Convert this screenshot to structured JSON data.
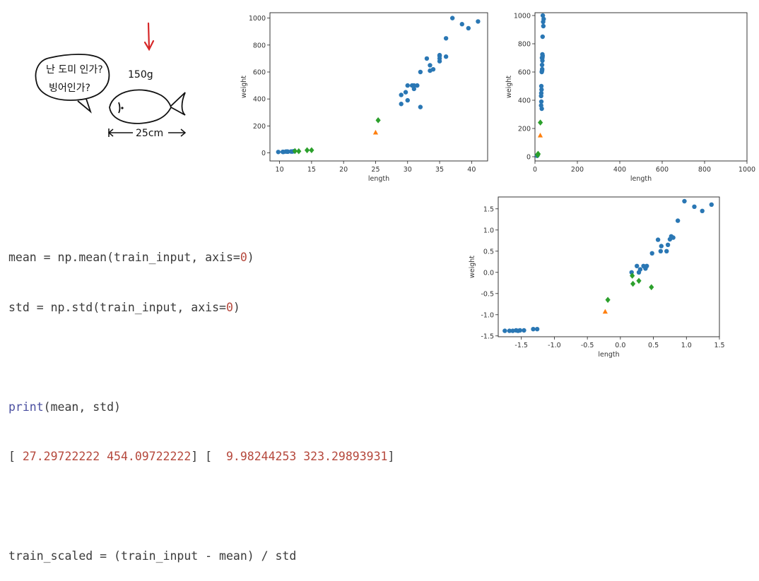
{
  "sketch": {
    "bubble_line1": "난 도미 인가?",
    "bubble_line2": "빙어인가?",
    "weight_label": "150g",
    "length_label": "25cm"
  },
  "code": {
    "line1_a": "mean = np.mean(train_input, axis=",
    "line1_b": "0",
    "line1_c": ")",
    "line2_a": "std = np.std(train_input, axis=",
    "line2_b": "0",
    "line2_c": ")",
    "line3_kw": "print",
    "line3_rest": "(mean, std)",
    "line4_open": "[ ",
    "line4_mean": "27.29722222 454.09722222",
    "line4_mid": "] [  ",
    "line4_std": "9.98244253 323.29893931",
    "line4_close": "]",
    "line5": "train_scaled = (train_input - mean) / std"
  },
  "colors": {
    "blue": "#2a77b4",
    "orange": "#ff7f0e",
    "green": "#2ca02c",
    "red_arrow": "#d62728"
  },
  "chart_data": [
    {
      "type": "scatter",
      "xlabel": "length",
      "ylabel": "weight",
      "xlim": [
        8.5,
        42.5
      ],
      "ylim": [
        -60,
        1040
      ],
      "xticks": [
        10,
        15,
        20,
        25,
        30,
        35,
        40
      ],
      "yticks": [
        0,
        200,
        400,
        600,
        800,
        1000
      ],
      "series": [
        {
          "marker": "circle",
          "color": "#2a77b4",
          "points": [
            [
              9.8,
              6.7
            ],
            [
              10.5,
              7.5
            ],
            [
              10.6,
              7.0
            ],
            [
              11.0,
              9.7
            ],
            [
              11.2,
              9.8
            ],
            [
              11.3,
              8.7
            ],
            [
              11.8,
              10.0
            ],
            [
              12.0,
              9.9
            ],
            [
              12.2,
              12.2
            ],
            [
              29.0,
              363
            ],
            [
              29.0,
              430
            ],
            [
              29.7,
              450
            ],
            [
              30.0,
              390
            ],
            [
              30.0,
              500
            ],
            [
              30.7,
              500
            ],
            [
              31.0,
              475
            ],
            [
              31.0,
              500
            ],
            [
              31.5,
              500
            ],
            [
              32.0,
              340
            ],
            [
              32.0,
              600
            ],
            [
              33.0,
              700
            ],
            [
              33.5,
              610
            ],
            [
              33.5,
              650
            ],
            [
              34.0,
              620
            ],
            [
              35.0,
              680
            ],
            [
              35.0,
              700
            ],
            [
              35.0,
              725
            ],
            [
              35.0,
              720
            ],
            [
              36.0,
              714
            ],
            [
              36.0,
              850
            ],
            [
              37.0,
              1000
            ],
            [
              38.5,
              955
            ],
            [
              39.5,
              925
            ],
            [
              41.0,
              975
            ]
          ]
        },
        {
          "marker": "diamond",
          "color": "#2ca02c",
          "points": [
            [
              12.4,
              13.4
            ],
            [
              13.0,
              12.2
            ],
            [
              14.3,
              19.7
            ],
            [
              15.0,
              19.9
            ],
            [
              25.4,
              242
            ]
          ]
        },
        {
          "marker": "triangle",
          "color": "#ff7f0e",
          "points": [
            [
              25,
              150
            ]
          ]
        }
      ]
    },
    {
      "type": "scatter",
      "xlabel": "length",
      "ylabel": "weight",
      "xlim": [
        0,
        1000
      ],
      "ylim": [
        -30,
        1020
      ],
      "xticks": [
        0,
        200,
        400,
        600,
        800,
        1000
      ],
      "yticks": [
        0,
        200,
        400,
        600,
        800,
        1000
      ],
      "series": [
        {
          "marker": "circle",
          "color": "#2a77b4",
          "points": [
            [
              9.8,
              6.7
            ],
            [
              10.5,
              7.5
            ],
            [
              11.0,
              9.7
            ],
            [
              11.8,
              10.0
            ],
            [
              12.2,
              12.2
            ],
            [
              29.0,
              363
            ],
            [
              29.0,
              430
            ],
            [
              29.7,
              450
            ],
            [
              30.0,
              390
            ],
            [
              30.0,
              500
            ],
            [
              31.0,
              475
            ],
            [
              32.0,
              340
            ],
            [
              32.0,
              600
            ],
            [
              33.0,
              700
            ],
            [
              33.5,
              610
            ],
            [
              33.5,
              650
            ],
            [
              34.0,
              620
            ],
            [
              35.0,
              680
            ],
            [
              35.0,
              700
            ],
            [
              35.0,
              725
            ],
            [
              36.0,
              714
            ],
            [
              36.0,
              850
            ],
            [
              37.0,
              1000
            ],
            [
              38.5,
              955
            ],
            [
              39.5,
              925
            ],
            [
              41.0,
              975
            ]
          ]
        },
        {
          "marker": "diamond",
          "color": "#2ca02c",
          "points": [
            [
              12.4,
              13.4
            ],
            [
              13.0,
              12.2
            ],
            [
              14.3,
              19.7
            ],
            [
              15.0,
              19.9
            ],
            [
              25.4,
              242
            ]
          ]
        },
        {
          "marker": "triangle",
          "color": "#ff7f0e",
          "points": [
            [
              25,
              150
            ]
          ]
        }
      ]
    },
    {
      "type": "scatter",
      "xlabel": "length",
      "ylabel": "weight",
      "xlim": [
        -1.85,
        1.5
      ],
      "ylim": [
        -1.52,
        1.78
      ],
      "xticks": [
        -1.5,
        -1.0,
        -0.5,
        0.0,
        0.5,
        1.0,
        1.5
      ],
      "xtick_labels": [
        "-1.5",
        "-1.0",
        "-0.5",
        "0.0",
        "0.5",
        "1.0",
        "1.5"
      ],
      "yticks": [
        -1.5,
        -1.0,
        -0.5,
        0.0,
        0.5,
        1.0,
        1.5
      ],
      "ytick_labels": [
        "-1.5",
        "-1.0",
        "-0.5",
        "0.0",
        "0.5",
        "1.0",
        "1.5"
      ],
      "series": [
        {
          "marker": "circle",
          "color": "#2a77b4",
          "points": [
            [
              -1.75,
              -1.38
            ],
            [
              -1.68,
              -1.38
            ],
            [
              -1.63,
              -1.38
            ],
            [
              -1.58,
              -1.37
            ],
            [
              -1.55,
              -1.38
            ],
            [
              -1.52,
              -1.37
            ],
            [
              -1.46,
              -1.37
            ],
            [
              -1.32,
              -1.34
            ],
            [
              -1.26,
              -1.34
            ],
            [
              0.17,
              0.0
            ],
            [
              0.25,
              0.15
            ],
            [
              0.28,
              0.0
            ],
            [
              0.3,
              0.07
            ],
            [
              0.35,
              0.15
            ],
            [
              0.4,
              0.15
            ],
            [
              0.38,
              0.09
            ],
            [
              0.48,
              0.45
            ],
            [
              0.57,
              0.77
            ],
            [
              0.61,
              0.5
            ],
            [
              0.62,
              0.62
            ],
            [
              0.7,
              0.5
            ],
            [
              0.72,
              0.65
            ],
            [
              0.75,
              0.78
            ],
            [
              0.77,
              0.85
            ],
            [
              0.8,
              0.82
            ],
            [
              0.87,
              1.22
            ],
            [
              0.97,
              1.68
            ],
            [
              1.12,
              1.55
            ],
            [
              1.24,
              1.45
            ],
            [
              1.38,
              1.6
            ]
          ]
        },
        {
          "marker": "diamond",
          "color": "#2ca02c",
          "points": [
            [
              -0.19,
              -0.65
            ],
            [
              0.18,
              -0.08
            ],
            [
              0.19,
              -0.27
            ],
            [
              0.28,
              -0.2
            ],
            [
              0.47,
              -0.35
            ]
          ]
        },
        {
          "marker": "triangle",
          "color": "#ff7f0e",
          "points": [
            [
              -0.23,
              -0.93
            ]
          ]
        }
      ]
    }
  ]
}
